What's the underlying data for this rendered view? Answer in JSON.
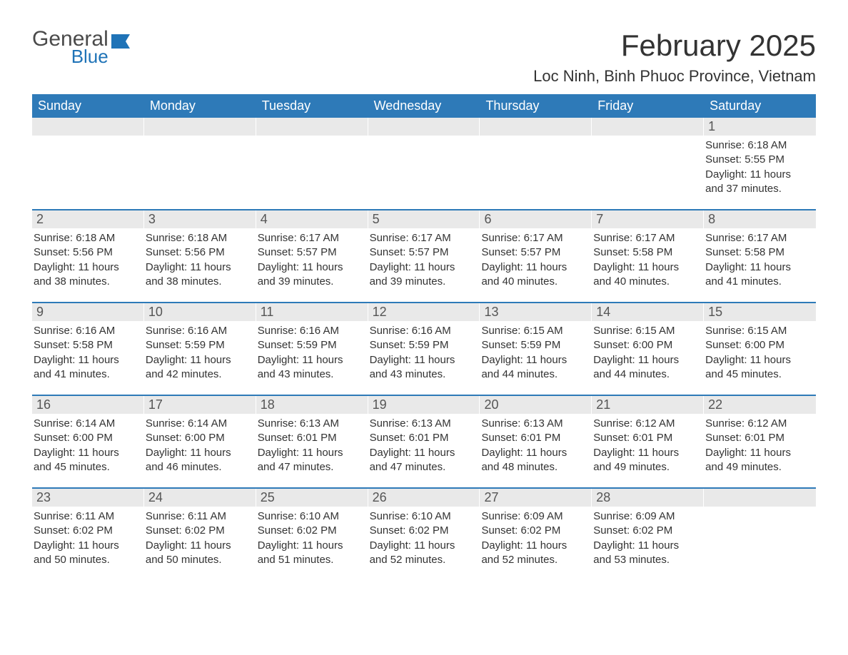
{
  "brand": {
    "name_part1": "General",
    "name_part2": "Blue",
    "color_primary": "#1f73b7",
    "color_text": "#4a4a4a"
  },
  "header": {
    "month_title": "February 2025",
    "location": "Loc Ninh, Binh Phuoc Province, Vietnam"
  },
  "colors": {
    "header_bar": "#2e7ab8",
    "daynum_bg": "#e9e9e9",
    "week_border": "#2e7ab8",
    "background": "#ffffff",
    "text": "#333333"
  },
  "typography": {
    "month_title_fontsize": 42,
    "location_fontsize": 22,
    "dow_fontsize": 18,
    "daynum_fontsize": 18,
    "info_fontsize": 15
  },
  "calendar": {
    "type": "monthly-calendar",
    "days_of_week": [
      "Sunday",
      "Monday",
      "Tuesday",
      "Wednesday",
      "Thursday",
      "Friday",
      "Saturday"
    ],
    "labels": {
      "sunrise_prefix": "Sunrise: ",
      "sunset_prefix": "Sunset: ",
      "daylight_prefix": "Daylight: "
    },
    "weeks": [
      [
        {
          "empty": true
        },
        {
          "empty": true
        },
        {
          "empty": true
        },
        {
          "empty": true
        },
        {
          "empty": true
        },
        {
          "empty": true
        },
        {
          "num": "1",
          "sunrise": "6:18 AM",
          "sunset": "5:55 PM",
          "daylight": "11 hours and 37 minutes."
        }
      ],
      [
        {
          "num": "2",
          "sunrise": "6:18 AM",
          "sunset": "5:56 PM",
          "daylight": "11 hours and 38 minutes."
        },
        {
          "num": "3",
          "sunrise": "6:18 AM",
          "sunset": "5:56 PM",
          "daylight": "11 hours and 38 minutes."
        },
        {
          "num": "4",
          "sunrise": "6:17 AM",
          "sunset": "5:57 PM",
          "daylight": "11 hours and 39 minutes."
        },
        {
          "num": "5",
          "sunrise": "6:17 AM",
          "sunset": "5:57 PM",
          "daylight": "11 hours and 39 minutes."
        },
        {
          "num": "6",
          "sunrise": "6:17 AM",
          "sunset": "5:57 PM",
          "daylight": "11 hours and 40 minutes."
        },
        {
          "num": "7",
          "sunrise": "6:17 AM",
          "sunset": "5:58 PM",
          "daylight": "11 hours and 40 minutes."
        },
        {
          "num": "8",
          "sunrise": "6:17 AM",
          "sunset": "5:58 PM",
          "daylight": "11 hours and 41 minutes."
        }
      ],
      [
        {
          "num": "9",
          "sunrise": "6:16 AM",
          "sunset": "5:58 PM",
          "daylight": "11 hours and 41 minutes."
        },
        {
          "num": "10",
          "sunrise": "6:16 AM",
          "sunset": "5:59 PM",
          "daylight": "11 hours and 42 minutes."
        },
        {
          "num": "11",
          "sunrise": "6:16 AM",
          "sunset": "5:59 PM",
          "daylight": "11 hours and 43 minutes."
        },
        {
          "num": "12",
          "sunrise": "6:16 AM",
          "sunset": "5:59 PM",
          "daylight": "11 hours and 43 minutes."
        },
        {
          "num": "13",
          "sunrise": "6:15 AM",
          "sunset": "5:59 PM",
          "daylight": "11 hours and 44 minutes."
        },
        {
          "num": "14",
          "sunrise": "6:15 AM",
          "sunset": "6:00 PM",
          "daylight": "11 hours and 44 minutes."
        },
        {
          "num": "15",
          "sunrise": "6:15 AM",
          "sunset": "6:00 PM",
          "daylight": "11 hours and 45 minutes."
        }
      ],
      [
        {
          "num": "16",
          "sunrise": "6:14 AM",
          "sunset": "6:00 PM",
          "daylight": "11 hours and 45 minutes."
        },
        {
          "num": "17",
          "sunrise": "6:14 AM",
          "sunset": "6:00 PM",
          "daylight": "11 hours and 46 minutes."
        },
        {
          "num": "18",
          "sunrise": "6:13 AM",
          "sunset": "6:01 PM",
          "daylight": "11 hours and 47 minutes."
        },
        {
          "num": "19",
          "sunrise": "6:13 AM",
          "sunset": "6:01 PM",
          "daylight": "11 hours and 47 minutes."
        },
        {
          "num": "20",
          "sunrise": "6:13 AM",
          "sunset": "6:01 PM",
          "daylight": "11 hours and 48 minutes."
        },
        {
          "num": "21",
          "sunrise": "6:12 AM",
          "sunset": "6:01 PM",
          "daylight": "11 hours and 49 minutes."
        },
        {
          "num": "22",
          "sunrise": "6:12 AM",
          "sunset": "6:01 PM",
          "daylight": "11 hours and 49 minutes."
        }
      ],
      [
        {
          "num": "23",
          "sunrise": "6:11 AM",
          "sunset": "6:02 PM",
          "daylight": "11 hours and 50 minutes."
        },
        {
          "num": "24",
          "sunrise": "6:11 AM",
          "sunset": "6:02 PM",
          "daylight": "11 hours and 50 minutes."
        },
        {
          "num": "25",
          "sunrise": "6:10 AM",
          "sunset": "6:02 PM",
          "daylight": "11 hours and 51 minutes."
        },
        {
          "num": "26",
          "sunrise": "6:10 AM",
          "sunset": "6:02 PM",
          "daylight": "11 hours and 52 minutes."
        },
        {
          "num": "27",
          "sunrise": "6:09 AM",
          "sunset": "6:02 PM",
          "daylight": "11 hours and 52 minutes."
        },
        {
          "num": "28",
          "sunrise": "6:09 AM",
          "sunset": "6:02 PM",
          "daylight": "11 hours and 53 minutes."
        },
        {
          "empty": true
        }
      ]
    ]
  }
}
